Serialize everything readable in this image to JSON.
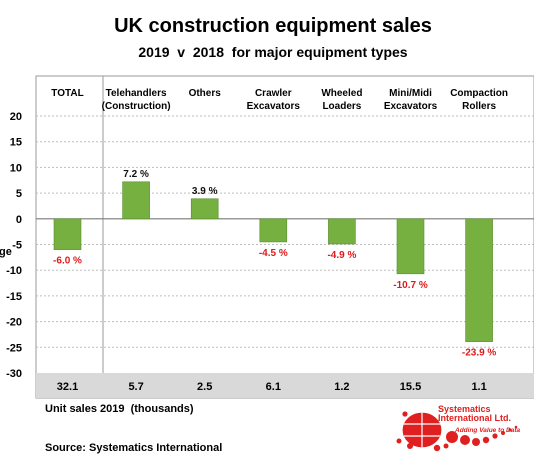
{
  "chart_data": {
    "type": "bar",
    "title": "UK construction equipment sales",
    "subtitle": "2019  v  2018  for major equipment types",
    "ylabel": "ge",
    "ylim": [
      -30,
      20
    ],
    "yticks": [
      20,
      15,
      10,
      5,
      0,
      -5,
      -10,
      -15,
      -20,
      -25,
      -30
    ],
    "grid": true,
    "categories": [
      {
        "line1": "TOTAL",
        "line2": ""
      },
      {
        "line1": "Telehandlers",
        "line2": "(Construction)"
      },
      {
        "line1": "Others",
        "line2": ""
      },
      {
        "line1": "Crawler",
        "line2": "Excavators"
      },
      {
        "line1": "Wheeled",
        "line2": "Loaders"
      },
      {
        "line1": "Mini/Midi",
        "line2": "Excavators"
      },
      {
        "line1": "Compaction",
        "line2": "Rollers"
      }
    ],
    "values": [
      -6.0,
      7.2,
      3.9,
      -4.5,
      -4.9,
      -10.7,
      -23.9
    ],
    "value_labels": [
      "-6.0 %",
      "7.2 %",
      "3.9 %",
      "-4.5 %",
      "-4.9 %",
      "-10.7 %",
      "-23.9 %"
    ],
    "unit_sales_2019": [
      "32.1",
      "5.7",
      "2.5",
      "6.1",
      "1.2",
      "15.5",
      "1.1"
    ],
    "unit_sales_caption": "Unit sales 2019  (thousands)",
    "source": "Source: Systematics International",
    "colors": {
      "bar": "#76b041",
      "bar_edge": "#5a8f2e",
      "negative_label": "#e0191b",
      "positive_label": "#111111",
      "grid": "#bdbdbd",
      "table_band": "#d9d9d9",
      "logo": "#e02020"
    }
  },
  "logo": {
    "line1": "Systematics",
    "line2": "International Ltd.",
    "tagline": "Adding Value to Data"
  }
}
